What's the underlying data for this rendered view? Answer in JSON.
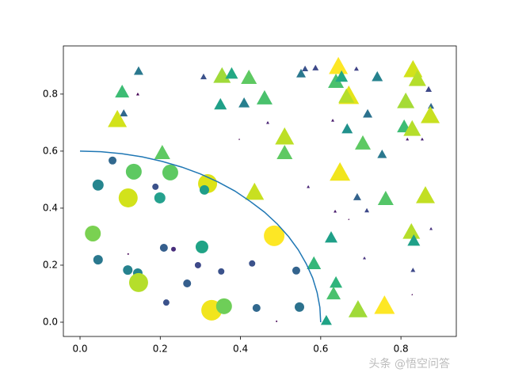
{
  "chart_data": {
    "type": "scatter",
    "xlim": [
      -0.0415,
      0.938
    ],
    "ylim": [
      -0.05,
      0.969
    ],
    "xticks": [
      {
        "value": 0,
        "label": "0.0"
      },
      0.2,
      0.4,
      0.6,
      0.8
    ],
    "yticks": [
      {
        "value": 0,
        "label": "0.0"
      },
      0.2,
      0.4,
      0.6,
      0.8
    ],
    "watermark": "头条 @悟空问答",
    "series": [
      {
        "marker": "o",
        "x": [
          0.032,
          0.045,
          0.081,
          0.134,
          0.12,
          0.199,
          0.225,
          0.188,
          0.318,
          0.31,
          0.045,
          0.119,
          0.144,
          0.146,
          0.209,
          0.233,
          0.304,
          0.294,
          0.267,
          0.352,
          0.429,
          0.215,
          0.328,
          0.359,
          0.44,
          0.484,
          0.539,
          0.547,
          0.49,
          0.12
        ],
        "values": [
          0.311,
          0.481,
          0.567,
          0.528,
          0.436,
          0.436,
          0.525,
          0.475,
          0.486,
          0.464,
          0.219,
          0.183,
          0.172,
          0.139,
          0.261,
          0.256,
          0.264,
          0.2,
          0.136,
          0.178,
          0.206,
          0.069,
          0.042,
          0.056,
          0.05,
          0.303,
          0.181,
          0.053,
          0.003,
          0.239
        ],
        "sizes": [
          10,
          7,
          5,
          10,
          12,
          7,
          10,
          4,
          12,
          6,
          6,
          6,
          6,
          12,
          5,
          3,
          8,
          4,
          5,
          4,
          4,
          4,
          13,
          10,
          5,
          13,
          5,
          6,
          1,
          1
        ],
        "colors": [
          "#7ad151",
          "#25858e",
          "#31688e",
          "#5ec962",
          "#d2e21b",
          "#25a18e",
          "#5ec962",
          "#3b528b",
          "#dde318",
          "#1f9e89",
          "#2a788e",
          "#26828e",
          "#25858e",
          "#b5de2b",
          "#355f8d",
          "#472d7b",
          "#20a386",
          "#3e4989",
          "#355f8d",
          "#3b528b",
          "#3b528b",
          "#3b528b",
          "#f1e51d",
          "#6ece58",
          "#31688e",
          "#fde725",
          "#33638d",
          "#2c728e",
          "#440154",
          "#440154"
        ]
      },
      {
        "marker": "^",
        "x": [
          0.146,
          0.105,
          0.109,
          0.144,
          0.093,
          0.205,
          0.308,
          0.354,
          0.378,
          0.421,
          0.35,
          0.409,
          0.46,
          0.468,
          0.397,
          0.51,
          0.51,
          0.435,
          0.551,
          0.561,
          0.587,
          0.569,
          0.644,
          0.638,
          0.652,
          0.67,
          0.664,
          0.63,
          0.666,
          0.689,
          0.717,
          0.741,
          0.705,
          0.753,
          0.648,
          0.691,
          0.715,
          0.636,
          0.67,
          0.626,
          0.762,
          0.583,
          0.638,
          0.632,
          0.693,
          0.759,
          0.614,
          0.709,
          0.83,
          0.841,
          0.869,
          0.812,
          0.875,
          0.808,
          0.828,
          0.873,
          0.853,
          0.816,
          0.861,
          0.826,
          0.832,
          0.875,
          0.83,
          0.828
        ],
        "values": [
          0.881,
          0.808,
          0.733,
          0.8,
          0.711,
          0.594,
          0.861,
          0.864,
          0.872,
          0.858,
          0.764,
          0.769,
          0.786,
          0.7,
          0.642,
          0.65,
          0.594,
          0.456,
          0.872,
          0.889,
          0.892,
          0.475,
          0.897,
          0.844,
          0.861,
          0.794,
          0.792,
          0.708,
          0.678,
          0.889,
          0.731,
          0.861,
          0.628,
          0.589,
          0.525,
          0.439,
          0.392,
          0.389,
          0.361,
          0.297,
          0.433,
          0.206,
          0.139,
          0.1,
          0.044,
          0.058,
          0.006,
          0.225,
          0.886,
          0.853,
          0.817,
          0.775,
          0.758,
          0.686,
          0.678,
          0.725,
          0.642,
          0.642,
          0.444,
          0.317,
          0.286,
          0.328,
          0.183,
          0.097
        ],
        "sizes": [
          6,
          9,
          5,
          2,
          12,
          10,
          4,
          11,
          8,
          10,
          8,
          7,
          10,
          2,
          1,
          12,
          10,
          12,
          6,
          4,
          4,
          2,
          12,
          10,
          8,
          13,
          10,
          2,
          7,
          3,
          6,
          7,
          10,
          6,
          13,
          5,
          3,
          2,
          1,
          8,
          10,
          9,
          8,
          9,
          12,
          13,
          7,
          2,
          12,
          11,
          4,
          11,
          4,
          9,
          11,
          12,
          2,
          2,
          12,
          11,
          8,
          2,
          3,
          1
        ],
        "colors": [
          "#2a788e",
          "#3dbc74",
          "#31688e",
          "#440154",
          "#d2e21b",
          "#5ec962",
          "#3b528b",
          "#a0da39",
          "#22a884",
          "#5ec962",
          "#1fa088",
          "#277f8e",
          "#4ac16d",
          "#482173",
          "#440154",
          "#bddf26",
          "#5ec962",
          "#c8e020",
          "#2a788e",
          "#3b528b",
          "#3e4989",
          "#482475",
          "#fde725",
          "#4ac16d",
          "#22a884",
          "#e5e419",
          "#b5de2b",
          "#481a6c",
          "#21918c",
          "#414487",
          "#2c728e",
          "#26828e",
          "#5ec962",
          "#2a788e",
          "#f1e51d",
          "#33638d",
          "#3e4989",
          "#481a6c",
          "#440154",
          "#1fa088",
          "#54c568",
          "#35b779",
          "#2fb47c",
          "#4ac16d",
          "#a0da39",
          "#fde725",
          "#20a386",
          "#46327e",
          "#d2e21b",
          "#b5de2b",
          "#3e4989",
          "#a5db36",
          "#31688e",
          "#3dbc74",
          "#b5de2b",
          "#c8e020",
          "#482173",
          "#481a6c",
          "#c2df23",
          "#b5de2b",
          "#1fa088",
          "#46327e",
          "#3e4989",
          "#440154"
        ]
      },
      {
        "marker": "line",
        "color": "#1f77b4",
        "x": [
          0,
          0.052,
          0.104,
          0.155,
          0.205,
          0.254,
          0.3,
          0.344,
          0.386,
          0.424,
          0.46,
          0.492,
          0.52,
          0.544,
          0.564,
          0.58,
          0.591,
          0.598,
          0.6
        ],
        "values": [
          0.6,
          0.598,
          0.591,
          0.58,
          0.564,
          0.544,
          0.52,
          0.492,
          0.46,
          0.424,
          0.386,
          0.344,
          0.3,
          0.254,
          0.205,
          0.155,
          0.104,
          0.052,
          0
        ]
      }
    ]
  }
}
